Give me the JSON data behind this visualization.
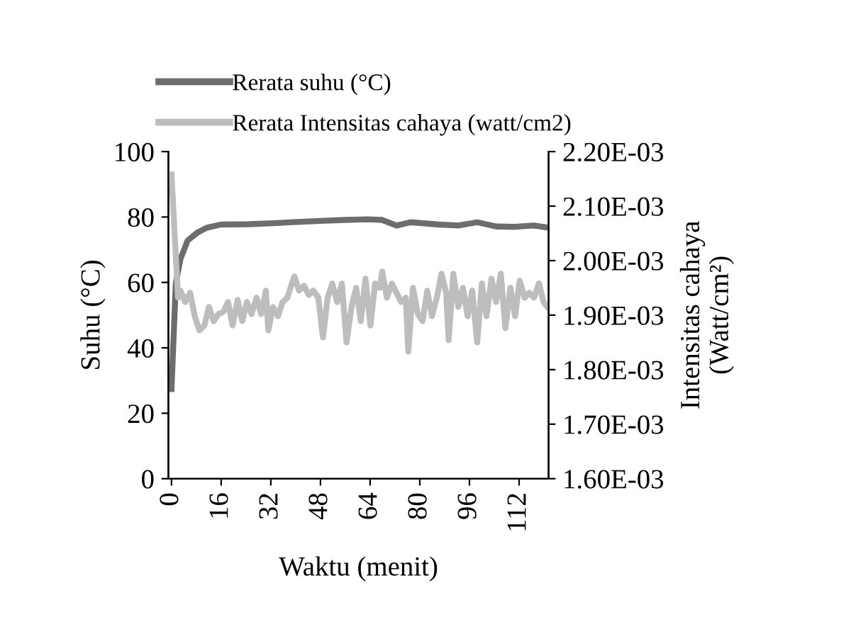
{
  "chart_data": {
    "type": "line",
    "xlabel": "Waktu (menit)",
    "ylabel": "Suhu (°C)",
    "y2label": "Intensitas cahaya\n(Watt/cm²)",
    "xlim": [
      -1,
      121.5
    ],
    "xticks": [
      0,
      16,
      32,
      48,
      64,
      80,
      96,
      112
    ],
    "ylim": [
      0,
      100
    ],
    "yticks": [
      0,
      20,
      40,
      60,
      80,
      100
    ],
    "y2lim": [
      0.0016,
      0.0022
    ],
    "y2ticks": [
      {
        "value": 0.0016,
        "label": "1.60E-03"
      },
      {
        "value": 0.0017,
        "label": "1.70E-03"
      },
      {
        "value": 0.0018,
        "label": "1.80E-03"
      },
      {
        "value": 0.0019,
        "label": "1.90E-03"
      },
      {
        "value": 0.002,
        "label": "2.00E-03"
      },
      {
        "value": 0.0021,
        "label": "2.10E-03"
      },
      {
        "value": 0.0022,
        "label": "2.20E-03"
      }
    ],
    "grid": false,
    "legend": "top",
    "marker": "none",
    "line_style": "solid",
    "series": [
      {
        "name": "Rerata suhu (°C)",
        "color": "#6d6d6d",
        "x": [
          0,
          1.4,
          2.9,
          5.2,
          8.3,
          11.3,
          15.9,
          25,
          32.7,
          40.4,
          48,
          55.7,
          63.3,
          67.9,
          72.5,
          77.1,
          86.2,
          92.4,
          98.5,
          104.6,
          110.7,
          116.8,
          121.1
        ],
        "values": [
          27.4,
          60,
          67.2,
          72.8,
          75.2,
          76.7,
          77.7,
          77.8,
          78.1,
          78.5,
          78.8,
          79.1,
          79.3,
          79.1,
          77.4,
          78.4,
          77.7,
          77.4,
          78.4,
          77.1,
          77.0,
          77.4,
          76.8
        ]
      },
      {
        "name": "Rerata Intensitas cahaya (watt/cm2)",
        "color": "#bdbdbd",
        "axis": "y2",
        "x": [
          0,
          2.1,
          2.9,
          4.4,
          6.0,
          7.5,
          9.0,
          10.6,
          12.1,
          13.6,
          15.1,
          16.7,
          18.2,
          19.7,
          21.3,
          22.8,
          24.3,
          25.8,
          27.4,
          28.9,
          30.4,
          31.2,
          32.7,
          34.3,
          35.8,
          37.3,
          38.8,
          39.6,
          41.1,
          42.7,
          44.2,
          45.7,
          47.3,
          48.8,
          50.3,
          51.8,
          53.4,
          54.9,
          56.4,
          58.0,
          59.5,
          61.0,
          62.5,
          64.1,
          65.6,
          67.1,
          67.9,
          69.4,
          71.0,
          72.5,
          74.0,
          75.5,
          76.3,
          77.8,
          79.4,
          80.9,
          82.4,
          83.9,
          85.5,
          87.0,
          88.5,
          89.3,
          90.8,
          92.4,
          93.9,
          95.4,
          96.9,
          98.5,
          100.0,
          101.5,
          103.1,
          104.6,
          106.1,
          107.6,
          109.2,
          110.7,
          112.2,
          113.8,
          115.3,
          116.8,
          118.4,
          119.9,
          121.1
        ],
        "values": [
          0.002158,
          0.001932,
          0.001945,
          0.001924,
          0.001941,
          0.001898,
          0.001872,
          0.001881,
          0.001915,
          0.001889,
          0.001902,
          0.001906,
          0.001924,
          0.001881,
          0.001928,
          0.001889,
          0.001924,
          0.001902,
          0.001932,
          0.001902,
          0.001945,
          0.001872,
          0.001915,
          0.001898,
          0.001924,
          0.001932,
          0.001958,
          0.001971,
          0.001945,
          0.001954,
          0.001937,
          0.001945,
          0.001932,
          0.001859,
          0.001932,
          0.001958,
          0.001924,
          0.001958,
          0.00185,
          0.001915,
          0.00195,
          0.001889,
          0.001967,
          0.001881,
          0.001958,
          0.00195,
          0.00198,
          0.001932,
          0.001958,
          0.001941,
          0.001924,
          0.001932,
          0.001833,
          0.00195,
          0.001902,
          0.001889,
          0.001945,
          0.001898,
          0.001932,
          0.001976,
          0.001941,
          0.001854,
          0.001976,
          0.001915,
          0.00195,
          0.001898,
          0.001945,
          0.00185,
          0.001958,
          0.001898,
          0.001967,
          0.001924,
          0.001976,
          0.001876,
          0.00195,
          0.001898,
          0.001963,
          0.001932,
          0.001941,
          0.001932,
          0.001958,
          0.001924,
          0.001915
        ]
      }
    ]
  }
}
